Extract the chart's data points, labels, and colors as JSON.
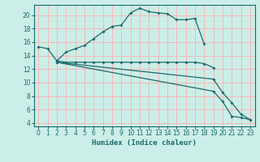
{
  "xlabel": "Humidex (Indice chaleur)",
  "background_color": "#cceee8",
  "grid_color": "#f5b8b8",
  "line_color": "#1a6b6b",
  "xlim": [
    -0.5,
    23.5
  ],
  "ylim": [
    3.5,
    21.5
  ],
  "yticks": [
    4,
    6,
    8,
    10,
    12,
    14,
    16,
    18,
    20
  ],
  "xticks": [
    0,
    1,
    2,
    3,
    4,
    5,
    6,
    7,
    8,
    9,
    10,
    11,
    12,
    13,
    14,
    15,
    16,
    17,
    18,
    19,
    20,
    21,
    22,
    23
  ],
  "lines": [
    {
      "x": [
        0,
        1,
        2,
        3,
        4,
        5,
        6,
        7,
        8,
        9,
        10,
        11,
        12,
        13,
        14,
        15,
        16,
        17,
        18
      ],
      "y": [
        15.3,
        15.0,
        13.2,
        14.5,
        15.0,
        15.5,
        16.5,
        17.5,
        18.3,
        18.5,
        20.3,
        21.0,
        20.5,
        20.3,
        20.2,
        19.3,
        19.3,
        19.5,
        15.7
      ]
    },
    {
      "x": [
        2,
        3,
        4,
        5,
        6,
        7,
        8,
        9,
        10,
        11,
        12,
        13,
        14,
        15,
        16,
        17,
        18,
        19
      ],
      "y": [
        13.2,
        13.0,
        13.0,
        13.0,
        13.0,
        13.0,
        13.0,
        13.0,
        13.0,
        13.0,
        13.0,
        13.0,
        13.0,
        13.0,
        13.0,
        13.0,
        12.8,
        12.2
      ]
    },
    {
      "x": [
        2,
        19,
        20,
        21,
        22,
        23
      ],
      "y": [
        13.0,
        8.7,
        7.2,
        5.0,
        4.8,
        4.5
      ]
    },
    {
      "x": [
        2,
        19,
        20,
        21,
        22,
        23
      ],
      "y": [
        13.0,
        10.5,
        8.5,
        7.0,
        5.3,
        4.5
      ]
    }
  ]
}
